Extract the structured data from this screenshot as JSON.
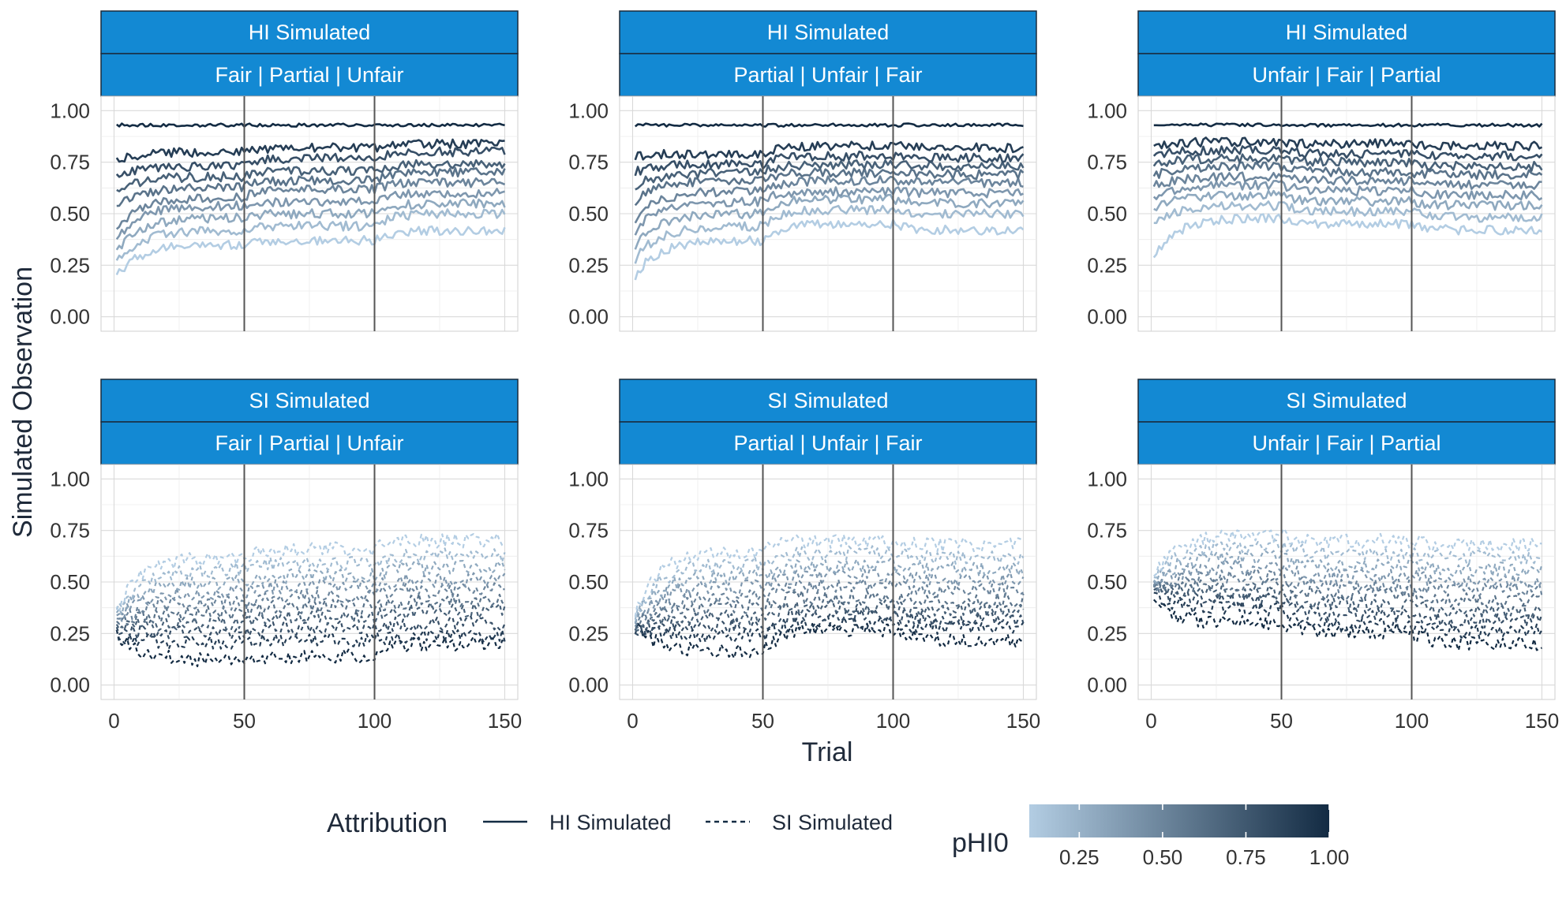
{
  "chart_data": {
    "type": "line",
    "xlabel": "Trial",
    "ylabel": "Simulated Observation",
    "xlim": [
      -5,
      155
    ],
    "ylim": [
      -0.07,
      1.07
    ],
    "x_ticks": [
      0,
      50,
      100,
      150
    ],
    "x_tick_labels": [
      "0",
      "50",
      "100",
      "150"
    ],
    "y_ticks": [
      0,
      0.25,
      0.5,
      0.75,
      1
    ],
    "y_tick_labels": [
      "0.00",
      "0.25",
      "0.50",
      "0.75",
      "1.00"
    ],
    "block_boundaries": [
      50,
      100
    ],
    "grid": true,
    "colors": {
      "strip_fill": "#1389D3",
      "strip_border": "#1a2b3c",
      "low": "#B3CDE3",
      "high": "#132B43",
      "vline": "#555555"
    },
    "panels": [
      {
        "row": 0,
        "col": 0,
        "attribution": "HI Simulated",
        "order": "Fair | Partial | Unfair",
        "series": [
          {
            "pHI0": 0.1,
            "start": 0.18,
            "plateau": [
              0.35,
              0.37,
              0.42
            ]
          },
          {
            "pHI0": 0.2,
            "start": 0.25,
            "plateau": [
              0.42,
              0.44,
              0.5
            ]
          },
          {
            "pHI0": 0.3,
            "start": 0.3,
            "plateau": [
              0.48,
              0.5,
              0.55
            ]
          },
          {
            "pHI0": 0.4,
            "start": 0.35,
            "plateau": [
              0.54,
              0.56,
              0.6
            ]
          },
          {
            "pHI0": 0.5,
            "start": 0.4,
            "plateau": [
              0.58,
              0.62,
              0.65
            ]
          },
          {
            "pHI0": 0.6,
            "start": 0.52,
            "plateau": [
              0.63,
              0.66,
              0.7
            ]
          },
          {
            "pHI0": 0.7,
            "start": 0.6,
            "plateau": [
              0.68,
              0.71,
              0.74
            ]
          },
          {
            "pHI0": 0.8,
            "start": 0.68,
            "plateau": [
              0.73,
              0.77,
              0.8
            ]
          },
          {
            "pHI0": 0.9,
            "start": 0.76,
            "plateau": [
              0.8,
              0.82,
              0.84
            ]
          },
          {
            "pHI0": 1.0,
            "start": 0.93,
            "plateau": [
              0.93,
              0.93,
              0.93
            ]
          }
        ]
      },
      {
        "row": 0,
        "col": 1,
        "attribution": "HI Simulated",
        "order": "Partial | Unfair | Fair",
        "series": [
          {
            "pHI0": 0.1,
            "start": 0.18,
            "plateau": [
              0.37,
              0.45,
              0.42
            ]
          },
          {
            "pHI0": 0.2,
            "start": 0.26,
            "plateau": [
              0.44,
              0.52,
              0.5
            ]
          },
          {
            "pHI0": 0.3,
            "start": 0.33,
            "plateau": [
              0.5,
              0.57,
              0.55
            ]
          },
          {
            "pHI0": 0.4,
            "start": 0.4,
            "plateau": [
              0.56,
              0.61,
              0.6
            ]
          },
          {
            "pHI0": 0.5,
            "start": 0.46,
            "plateau": [
              0.61,
              0.66,
              0.65
            ]
          },
          {
            "pHI0": 0.6,
            "start": 0.55,
            "plateau": [
              0.66,
              0.7,
              0.69
            ]
          },
          {
            "pHI0": 0.7,
            "start": 0.63,
            "plateau": [
              0.7,
              0.74,
              0.73
            ]
          },
          {
            "pHI0": 0.8,
            "start": 0.7,
            "plateau": [
              0.74,
              0.78,
              0.77
            ]
          },
          {
            "pHI0": 0.9,
            "start": 0.78,
            "plateau": [
              0.79,
              0.83,
              0.82
            ]
          },
          {
            "pHI0": 1.0,
            "start": 0.93,
            "plateau": [
              0.93,
              0.93,
              0.93
            ]
          }
        ]
      },
      {
        "row": 0,
        "col": 2,
        "attribution": "HI Simulated",
        "order": "Unfair | Fair | Partial",
        "series": [
          {
            "pHI0": 0.1,
            "start": 0.27,
            "plateau": [
              0.48,
              0.45,
              0.42
            ]
          },
          {
            "pHI0": 0.2,
            "start": 0.45,
            "plateau": [
              0.54,
              0.51,
              0.48
            ]
          },
          {
            "pHI0": 0.3,
            "start": 0.52,
            "plateau": [
              0.59,
              0.56,
              0.54
            ]
          },
          {
            "pHI0": 0.4,
            "start": 0.58,
            "plateau": [
              0.64,
              0.61,
              0.59
            ]
          },
          {
            "pHI0": 0.5,
            "start": 0.63,
            "plateau": [
              0.68,
              0.66,
              0.64
            ]
          },
          {
            "pHI0": 0.6,
            "start": 0.68,
            "plateau": [
              0.73,
              0.7,
              0.69
            ]
          },
          {
            "pHI0": 0.7,
            "start": 0.73,
            "plateau": [
              0.77,
              0.75,
              0.73
            ]
          },
          {
            "pHI0": 0.8,
            "start": 0.78,
            "plateau": [
              0.81,
              0.79,
              0.78
            ]
          },
          {
            "pHI0": 0.9,
            "start": 0.83,
            "plateau": [
              0.85,
              0.84,
              0.83
            ]
          },
          {
            "pHI0": 1.0,
            "start": 0.93,
            "plateau": [
              0.93,
              0.93,
              0.93
            ]
          }
        ]
      },
      {
        "row": 1,
        "col": 0,
        "attribution": "SI Simulated",
        "order": "Fair | Partial | Unfair",
        "series": [
          {
            "pHI0": 0.1,
            "start": 0.33,
            "plateau": [
              0.62,
              0.66,
              0.7
            ]
          },
          {
            "pHI0": 0.2,
            "start": 0.32,
            "plateau": [
              0.56,
              0.59,
              0.63
            ]
          },
          {
            "pHI0": 0.3,
            "start": 0.31,
            "plateau": [
              0.5,
              0.53,
              0.57
            ]
          },
          {
            "pHI0": 0.4,
            "start": 0.3,
            "plateau": [
              0.45,
              0.48,
              0.51
            ]
          },
          {
            "pHI0": 0.5,
            "start": 0.29,
            "plateau": [
              0.4,
              0.43,
              0.46
            ]
          },
          {
            "pHI0": 0.6,
            "start": 0.28,
            "plateau": [
              0.35,
              0.38,
              0.41
            ]
          },
          {
            "pHI0": 0.7,
            "start": 0.27,
            "plateau": [
              0.3,
              0.33,
              0.36
            ]
          },
          {
            "pHI0": 0.8,
            "start": 0.26,
            "plateau": [
              0.25,
              0.28,
              0.3
            ]
          },
          {
            "pHI0": 0.9,
            "start": 0.25,
            "plateau": [
              0.2,
              0.22,
              0.24
            ]
          },
          {
            "pHI0": 1.0,
            "start": 0.26,
            "plateau": [
              0.12,
              0.14,
              0.2
            ]
          }
        ]
      },
      {
        "row": 1,
        "col": 1,
        "attribution": "SI Simulated",
        "order": "Partial | Unfair | Fair",
        "series": [
          {
            "pHI0": 0.1,
            "start": 0.32,
            "plateau": [
              0.65,
              0.7,
              0.68
            ]
          },
          {
            "pHI0": 0.2,
            "start": 0.31,
            "plateau": [
              0.59,
              0.64,
              0.62
            ]
          },
          {
            "pHI0": 0.3,
            "start": 0.3,
            "plateau": [
              0.53,
              0.58,
              0.56
            ]
          },
          {
            "pHI0": 0.4,
            "start": 0.3,
            "plateau": [
              0.48,
              0.53,
              0.51
            ]
          },
          {
            "pHI0": 0.5,
            "start": 0.29,
            "plateau": [
              0.43,
              0.48,
              0.46
            ]
          },
          {
            "pHI0": 0.6,
            "start": 0.28,
            "plateau": [
              0.38,
              0.43,
              0.41
            ]
          },
          {
            "pHI0": 0.7,
            "start": 0.28,
            "plateau": [
              0.33,
              0.38,
              0.36
            ]
          },
          {
            "pHI0": 0.8,
            "start": 0.27,
            "plateau": [
              0.29,
              0.34,
              0.32
            ]
          },
          {
            "pHI0": 0.9,
            "start": 0.27,
            "plateau": [
              0.24,
              0.3,
              0.28
            ]
          },
          {
            "pHI0": 1.0,
            "start": 0.3,
            "plateau": [
              0.16,
              0.27,
              0.22
            ]
          }
        ]
      },
      {
        "row": 1,
        "col": 2,
        "attribution": "SI Simulated",
        "order": "Unfair | Fair | Partial",
        "series": [
          {
            "pHI0": 0.1,
            "start": 0.5,
            "plateau": [
              0.73,
              0.7,
              0.68
            ]
          },
          {
            "pHI0": 0.2,
            "start": 0.5,
            "plateau": [
              0.67,
              0.64,
              0.62
            ]
          },
          {
            "pHI0": 0.3,
            "start": 0.49,
            "plateau": [
              0.62,
              0.58,
              0.56
            ]
          },
          {
            "pHI0": 0.4,
            "start": 0.49,
            "plateau": [
              0.57,
              0.53,
              0.51
            ]
          },
          {
            "pHI0": 0.5,
            "start": 0.48,
            "plateau": [
              0.53,
              0.48,
              0.46
            ]
          },
          {
            "pHI0": 0.6,
            "start": 0.47,
            "plateau": [
              0.49,
              0.44,
              0.41
            ]
          },
          {
            "pHI0": 0.7,
            "start": 0.47,
            "plateau": [
              0.45,
              0.39,
              0.36
            ]
          },
          {
            "pHI0": 0.8,
            "start": 0.46,
            "plateau": [
              0.41,
              0.34,
              0.31
            ]
          },
          {
            "pHI0": 0.9,
            "start": 0.45,
            "plateau": [
              0.37,
              0.29,
              0.26
            ]
          },
          {
            "pHI0": 1.0,
            "start": 0.42,
            "plateau": [
              0.3,
              0.26,
              0.2
            ]
          }
        ]
      }
    ],
    "legend": {
      "linetype_title": "Attribution",
      "linetype_entries": [
        {
          "label": "HI Simulated",
          "style": "solid"
        },
        {
          "label": "SI Simulated",
          "style": "dashed"
        }
      ],
      "color_title": "pHI0",
      "color_range": [
        0.1,
        1.0
      ],
      "color_ticks": [
        0.25,
        0.5,
        0.75,
        1.0
      ],
      "color_tick_labels": [
        "0.25",
        "0.50",
        "0.75",
        "1.00"
      ],
      "placement": "bottom"
    }
  }
}
